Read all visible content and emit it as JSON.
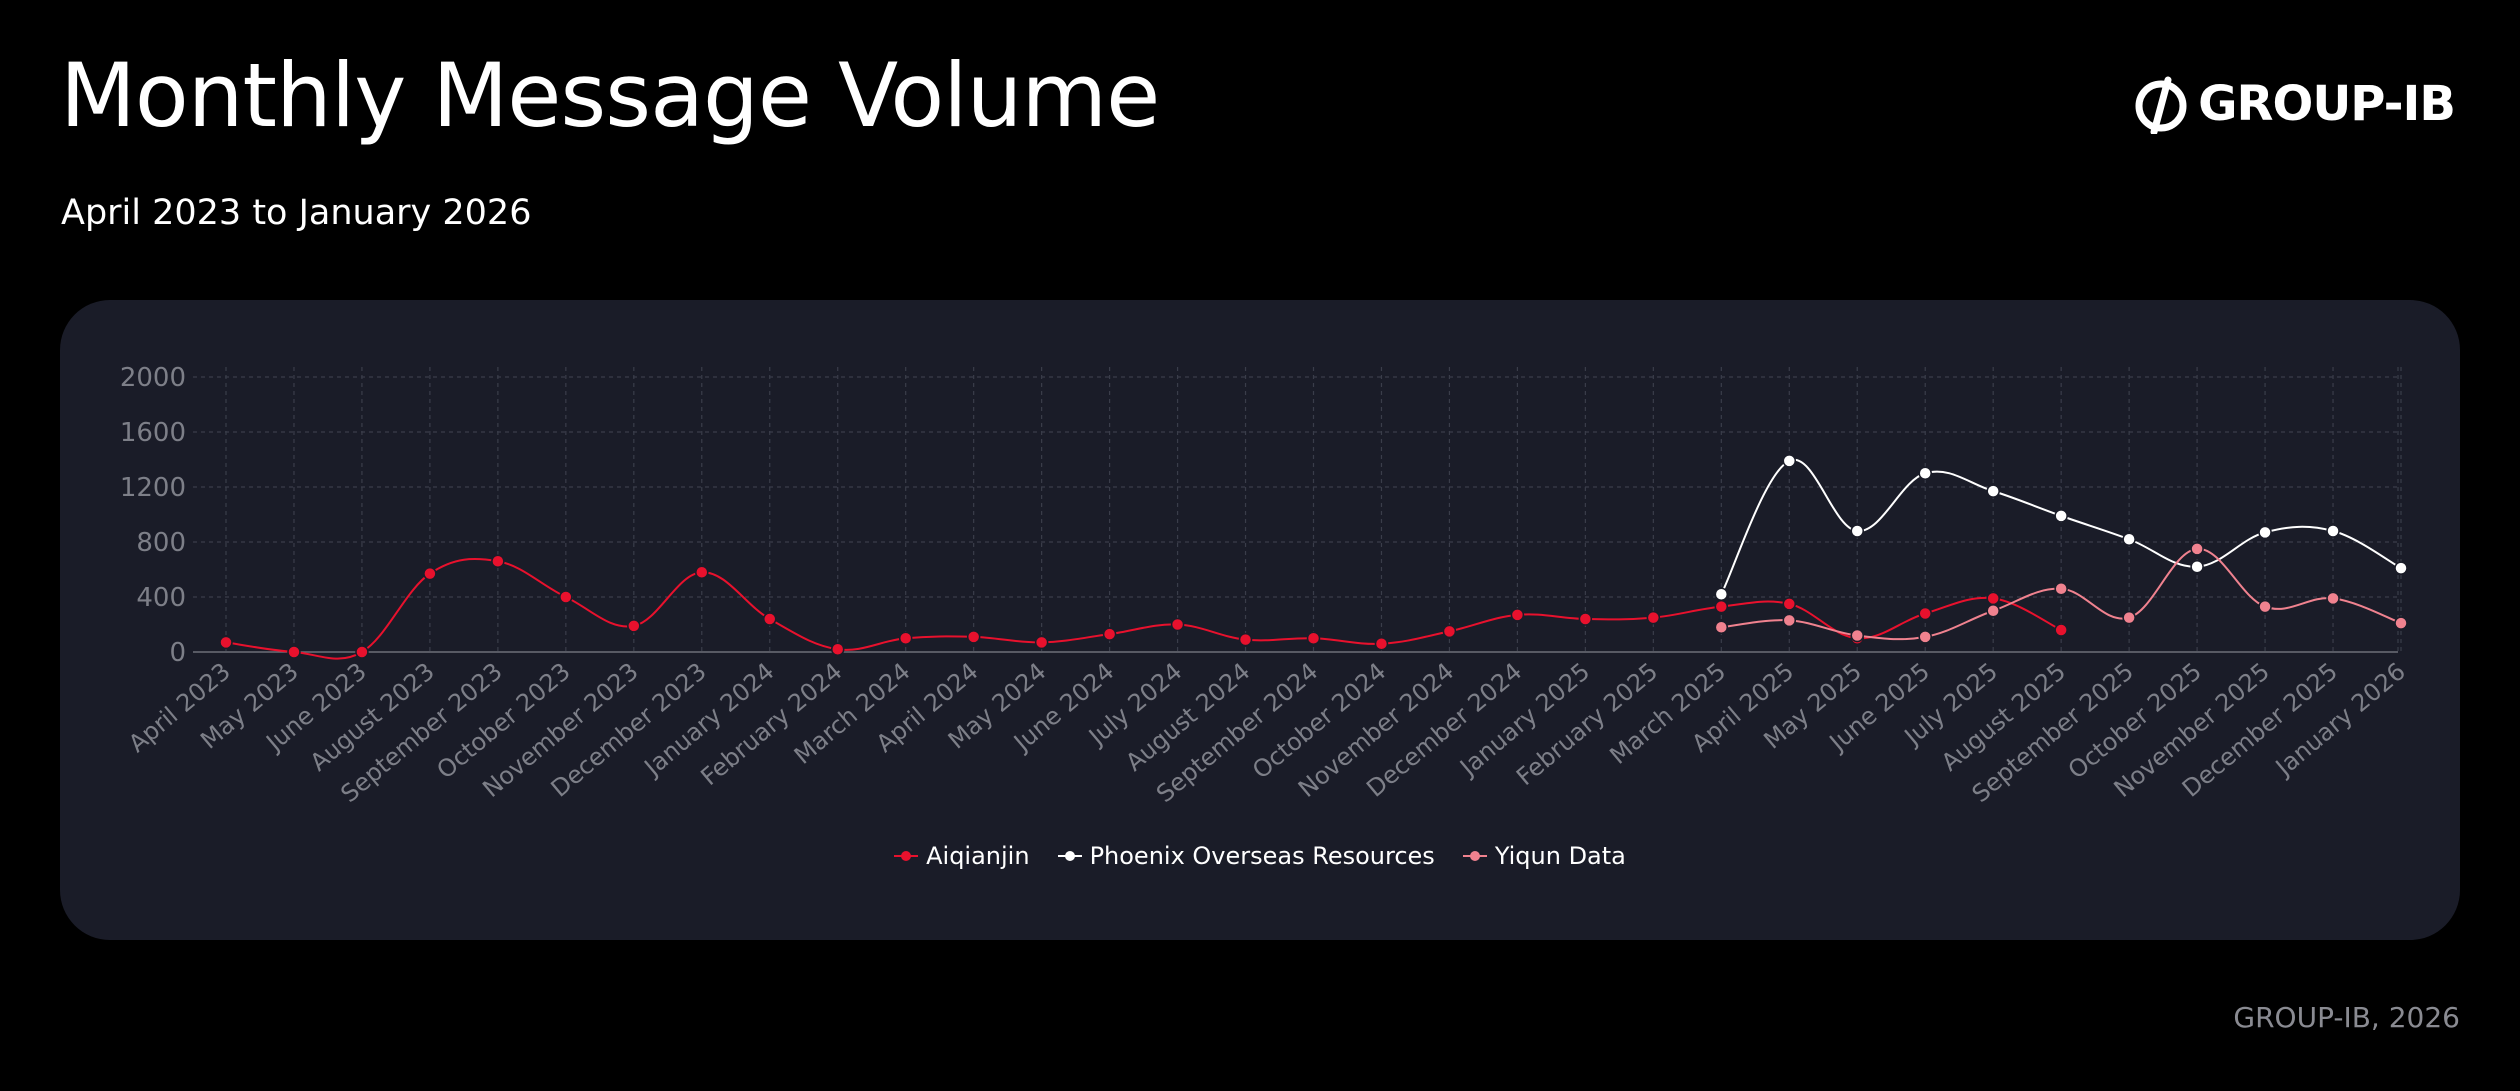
{
  "header": {
    "title": "Monthly Message Volume",
    "subtitle": "April 2023 to January 2026",
    "brand": "GROUP-IB"
  },
  "footer": {
    "credit": "GROUP-IB, 2026"
  },
  "colors": {
    "background": "#000000",
    "card": "#1a1c28",
    "grid": "#3a3d4a",
    "axis_text": "#7d7f88"
  },
  "chart_data": {
    "type": "line",
    "title": "Monthly Message Volume",
    "subtitle": "April 2023 to January 2026",
    "xlabel": "",
    "ylabel": "",
    "ylim": [
      0,
      2000
    ],
    "yticks": [
      0,
      400,
      800,
      1200,
      1600,
      2000
    ],
    "grid": true,
    "legend": "bottom-center",
    "categories": [
      "April 2023",
      "May 2023",
      "June 2023",
      "August 2023",
      "September 2023",
      "October 2023",
      "November 2023",
      "December 2023",
      "January 2024",
      "February 2024",
      "March 2024",
      "April 2024",
      "May 2024",
      "June 2024",
      "July 2024",
      "August 2024",
      "September 2024",
      "October 2024",
      "November 2024",
      "December 2024",
      "January 2025",
      "February 2025",
      "March 2025",
      "April 2025",
      "May 2025",
      "June 2025",
      "July 2025",
      "August 2025",
      "September 2025",
      "October 2025",
      "November 2025",
      "December 2025",
      "January 2026"
    ],
    "series": [
      {
        "name": "Aiqianjin",
        "color": "#e8112d",
        "values": [
          70,
          0,
          0,
          570,
          660,
          400,
          190,
          580,
          240,
          20,
          100,
          110,
          70,
          130,
          200,
          90,
          100,
          60,
          150,
          270,
          240,
          250,
          330,
          350,
          100,
          280,
          390,
          160,
          null,
          null,
          null,
          null,
          null
        ]
      },
      {
        "name": "Phoenix Overseas Resources",
        "color": "#ffffff",
        "values": [
          null,
          null,
          null,
          null,
          null,
          null,
          null,
          null,
          null,
          null,
          null,
          null,
          null,
          null,
          null,
          null,
          null,
          null,
          null,
          null,
          null,
          null,
          420,
          1390,
          880,
          1300,
          1170,
          990,
          820,
          620,
          870,
          880,
          610
        ]
      },
      {
        "name": "Yiqun Data",
        "color": "#f0828f",
        "values": [
          null,
          null,
          null,
          null,
          null,
          null,
          null,
          null,
          null,
          null,
          null,
          null,
          null,
          null,
          null,
          null,
          null,
          null,
          null,
          null,
          null,
          null,
          180,
          230,
          120,
          110,
          300,
          460,
          250,
          750,
          330,
          390,
          210
        ]
      }
    ]
  }
}
